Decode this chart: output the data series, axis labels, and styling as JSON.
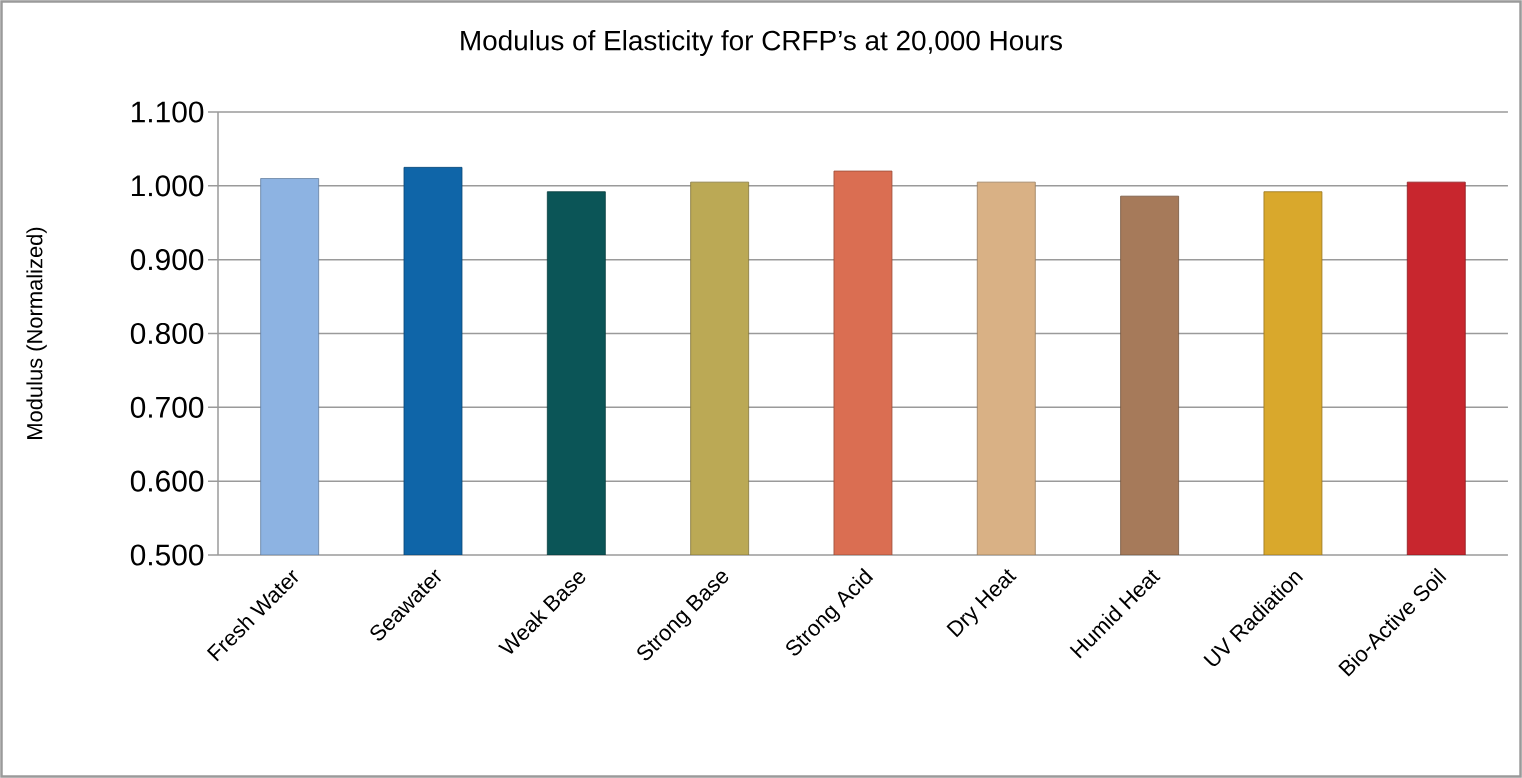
{
  "chart_data": {
    "type": "bar",
    "title": "Modulus of Elasticity for CRFP’s at 20,000 Hours",
    "ylabel": "Modulus (Normalized)",
    "categories": [
      "Fresh Water",
      "Seawater",
      "Weak Base",
      "Strong Base",
      "Strong Acid",
      "Dry Heat",
      "Humid Heat",
      "UV Radiation",
      "Bio-Active Soil"
    ],
    "values": [
      1.01,
      1.025,
      0.992,
      1.005,
      1.02,
      1.005,
      0.986,
      0.992,
      1.005
    ],
    "colors": [
      "#8db3e2",
      "#0f65a8",
      "#0b5557",
      "#bba955",
      "#da6e52",
      "#d9b185",
      "#a67a5a",
      "#d9a82c",
      "#c8262e"
    ],
    "ylim": [
      0.5,
      1.1
    ],
    "yticks": [
      {
        "value": 0.5,
        "label": "0.500"
      },
      {
        "value": 0.6,
        "label": "0.600"
      },
      {
        "value": 0.7,
        "label": "0.700"
      },
      {
        "value": 0.8,
        "label": "0.800"
      },
      {
        "value": 0.9,
        "label": "0.900"
      },
      {
        "value": 1.0,
        "label": "1.000"
      },
      {
        "value": 1.1,
        "label": "1.100"
      }
    ],
    "grid": "y"
  }
}
